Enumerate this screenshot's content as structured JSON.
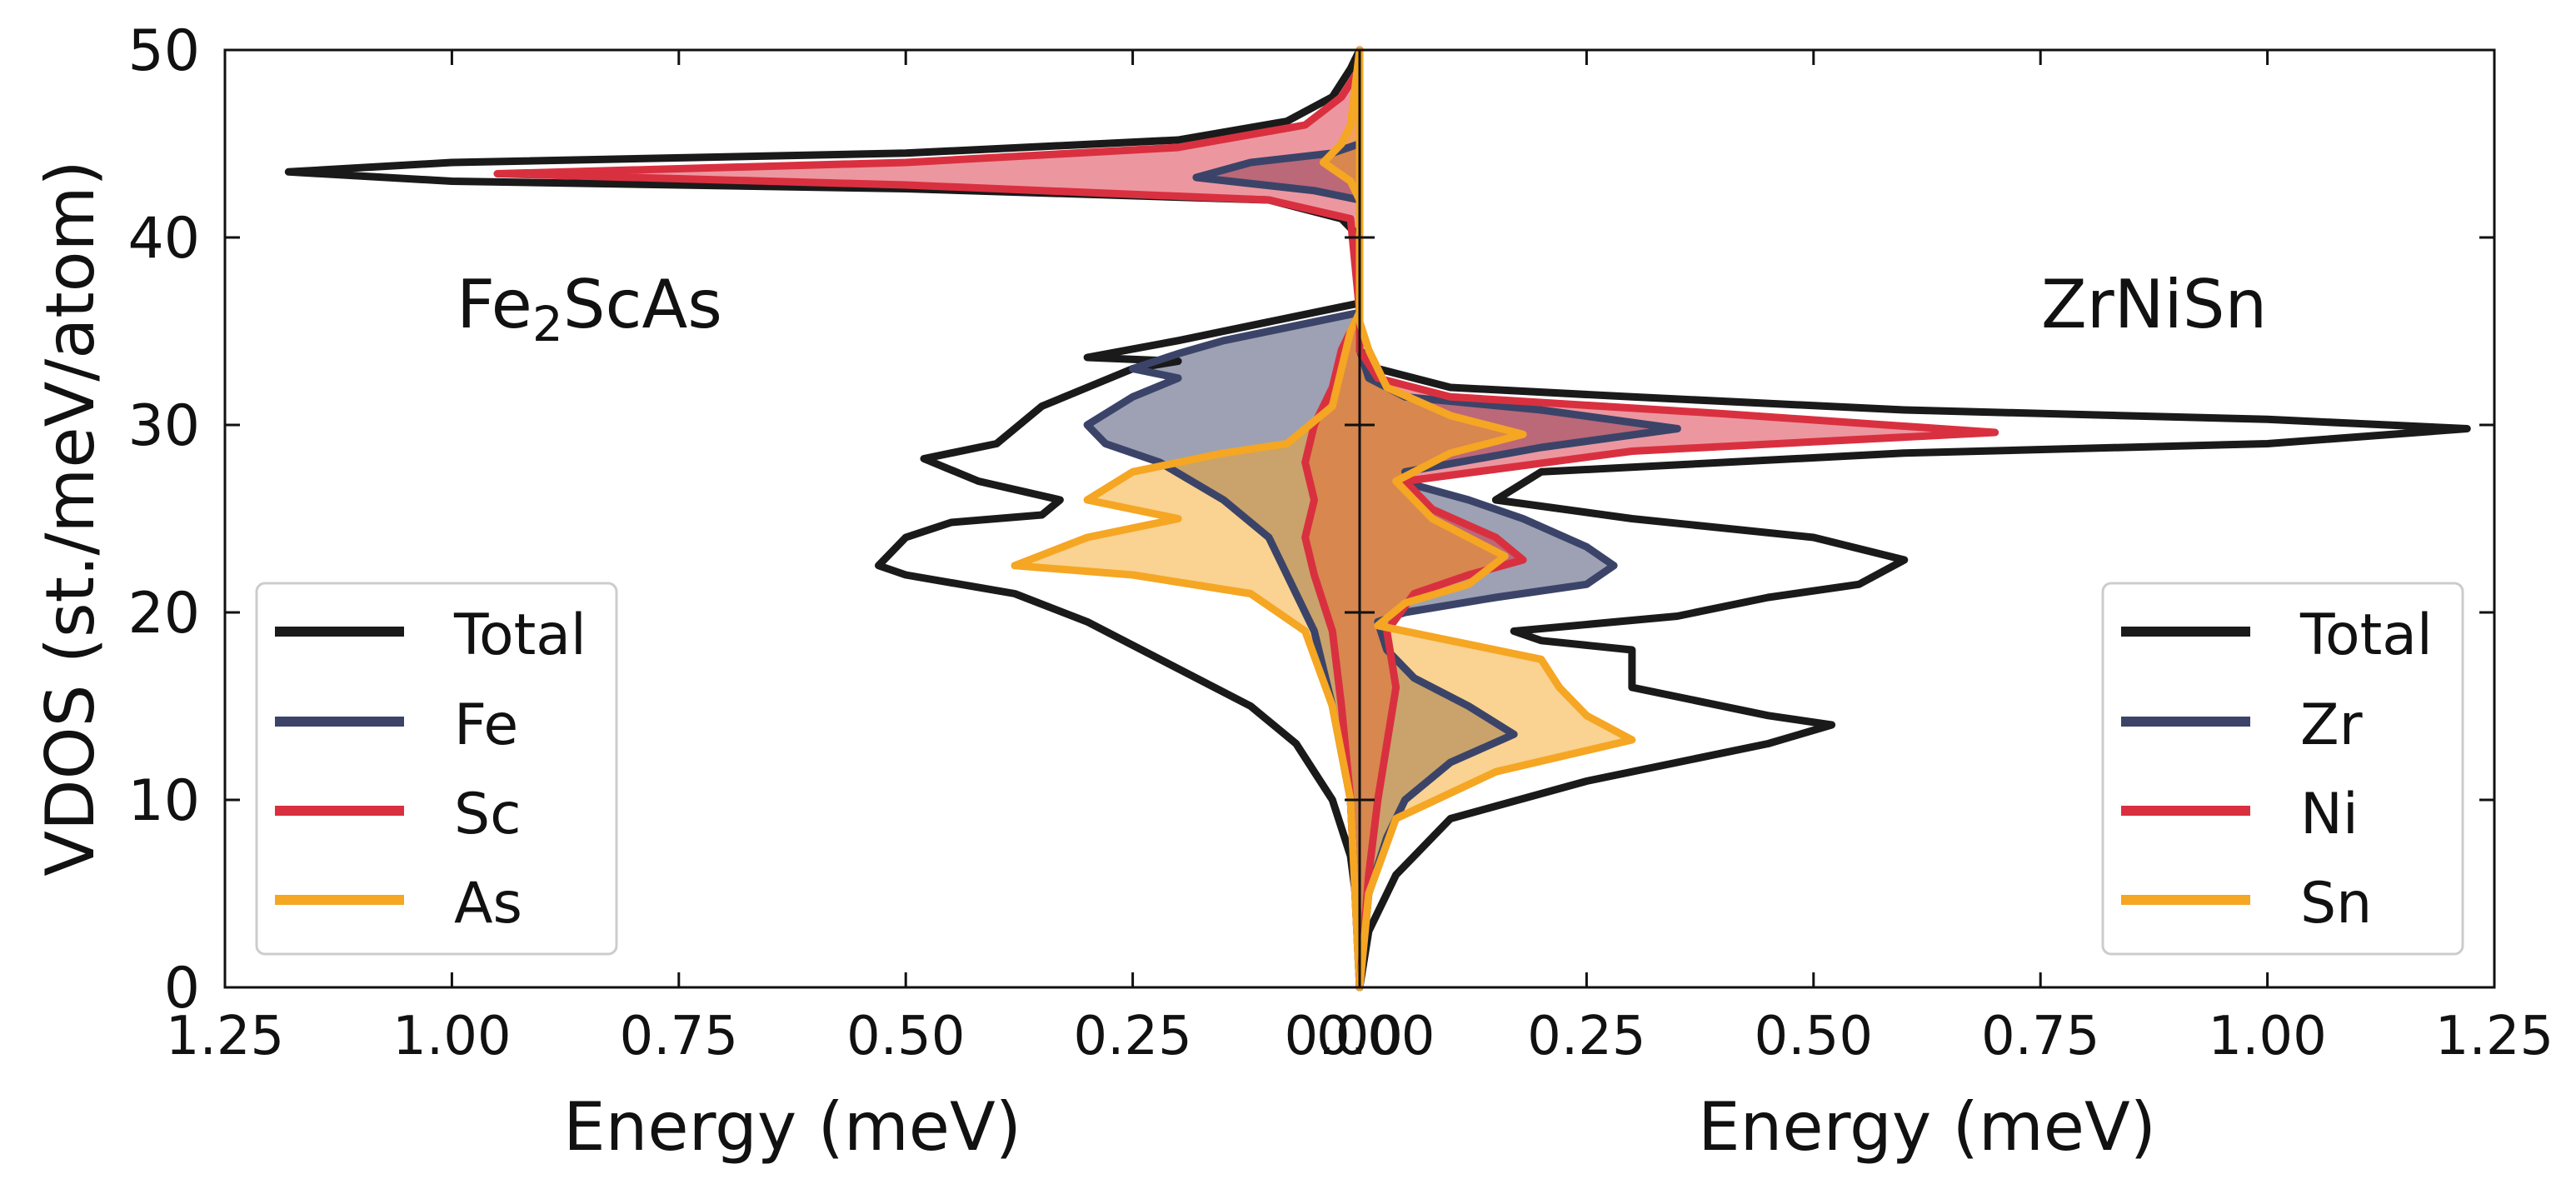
{
  "chart_data": {
    "type": "line",
    "ylabel": "VDOS (st./meV/atom)",
    "ylim": [
      0,
      50
    ],
    "yticks": [
      "0",
      "10",
      "20",
      "30",
      "40",
      "50"
    ],
    "panels": [
      {
        "title": "Fe₂ScAs",
        "compound": "Fe2ScAs",
        "orientation": "mirrored",
        "xlabel": "Energy (meV)",
        "xlim": [
          1.25,
          0.0
        ],
        "xticks": [
          "1.25",
          "1.00",
          "0.75",
          "0.50",
          "0.25",
          "0.00"
        ],
        "legend_position": "lower-left",
        "legend": [
          "Total",
          "Fe",
          "Sc",
          "As"
        ],
        "series": [
          {
            "name": "Total",
            "color": "#1a1a1a",
            "fill": false,
            "points": [
              [
                0,
                0
              ],
              [
                0.002,
                4
              ],
              [
                0.01,
                7
              ],
              [
                0.03,
                10
              ],
              [
                0.07,
                13
              ],
              [
                0.12,
                15
              ],
              [
                0.2,
                17
              ],
              [
                0.3,
                19.5
              ],
              [
                0.38,
                21
              ],
              [
                0.5,
                22
              ],
              [
                0.53,
                22.5
              ],
              [
                0.5,
                24
              ],
              [
                0.45,
                24.8
              ],
              [
                0.35,
                25.2
              ],
              [
                0.33,
                26
              ],
              [
                0.42,
                27
              ],
              [
                0.48,
                28.2
              ],
              [
                0.4,
                29
              ],
              [
                0.35,
                31
              ],
              [
                0.3,
                32
              ],
              [
                0.25,
                33
              ],
              [
                0.2,
                33.4
              ],
              [
                0.3,
                33.6
              ],
              [
                0.2,
                34.5
              ],
              [
                0.15,
                35
              ],
              [
                0.05,
                36
              ],
              [
                0.0,
                36.5
              ],
              [
                0.0,
                40
              ],
              [
                0.02,
                41
              ],
              [
                0.1,
                42
              ],
              [
                0.5,
                42.6
              ],
              [
                1.0,
                43
              ],
              [
                1.18,
                43.5
              ],
              [
                1.0,
                44
              ],
              [
                0.5,
                44.5
              ],
              [
                0.2,
                45.2
              ],
              [
                0.08,
                46.2
              ],
              [
                0.03,
                47.5
              ],
              [
                0.01,
                49
              ],
              [
                0,
                50
              ]
            ]
          },
          {
            "name": "Fe",
            "color": "#3b4468",
            "fill": true,
            "points": [
              [
                0,
                0
              ],
              [
                0.01,
                10
              ],
              [
                0.03,
                15
              ],
              [
                0.05,
                19
              ],
              [
                0.08,
                22
              ],
              [
                0.1,
                24
              ],
              [
                0.15,
                26
              ],
              [
                0.22,
                28
              ],
              [
                0.28,
                29
              ],
              [
                0.3,
                30
              ],
              [
                0.25,
                31.5
              ],
              [
                0.2,
                32.5
              ],
              [
                0.25,
                33
              ],
              [
                0.2,
                33.8
              ],
              [
                0.15,
                34.5
              ],
              [
                0.05,
                35.5
              ],
              [
                0,
                36
              ],
              [
                0,
                42
              ],
              [
                0.05,
                42.5
              ],
              [
                0.18,
                43.2
              ],
              [
                0.12,
                44
              ],
              [
                0.03,
                44.5
              ],
              [
                0,
                45
              ],
              [
                0,
                50
              ]
            ]
          },
          {
            "name": "Sc",
            "color": "#d93040",
            "fill": true,
            "points": [
              [
                0,
                0
              ],
              [
                0.01,
                10
              ],
              [
                0.02,
                15
              ],
              [
                0.03,
                19
              ],
              [
                0.05,
                22
              ],
              [
                0.06,
                24
              ],
              [
                0.05,
                26
              ],
              [
                0.06,
                28
              ],
              [
                0.05,
                30
              ],
              [
                0.03,
                32
              ],
              [
                0.02,
                34
              ],
              [
                0,
                36
              ],
              [
                0.01,
                41
              ],
              [
                0.1,
                42
              ],
              [
                0.5,
                42.8
              ],
              [
                0.95,
                43.4
              ],
              [
                0.5,
                44
              ],
              [
                0.2,
                44.8
              ],
              [
                0.06,
                46
              ],
              [
                0.02,
                47.5
              ],
              [
                0,
                49
              ],
              [
                0,
                50
              ]
            ]
          },
          {
            "name": "As",
            "color": "#f5a623",
            "fill": true,
            "points": [
              [
                0,
                0
              ],
              [
                0.01,
                10
              ],
              [
                0.03,
                15
              ],
              [
                0.06,
                19
              ],
              [
                0.12,
                21
              ],
              [
                0.25,
                22
              ],
              [
                0.38,
                22.5
              ],
              [
                0.3,
                24
              ],
              [
                0.2,
                25
              ],
              [
                0.3,
                26
              ],
              [
                0.25,
                27.5
              ],
              [
                0.15,
                28.5
              ],
              [
                0.08,
                29
              ],
              [
                0.03,
                31
              ],
              [
                0.02,
                33
              ],
              [
                0.01,
                35
              ],
              [
                0,
                36
              ],
              [
                0,
                42
              ],
              [
                0.01,
                43
              ],
              [
                0.04,
                44
              ],
              [
                0.02,
                45
              ],
              [
                0.01,
                46
              ],
              [
                0,
                50
              ]
            ]
          }
        ]
      },
      {
        "title": "ZrNiSn",
        "compound": "ZrNiSn",
        "orientation": "normal",
        "xlabel": "Energy (meV)",
        "xlim": [
          0.0,
          1.25
        ],
        "xticks": [
          "0.00",
          "0.25",
          "0.50",
          "0.75",
          "1.00",
          "1.25"
        ],
        "legend_position": "lower-right",
        "legend": [
          "Total",
          "Zr",
          "Ni",
          "Sn"
        ],
        "series": [
          {
            "name": "Total",
            "color": "#1a1a1a",
            "fill": false,
            "points": [
              [
                0,
                0
              ],
              [
                0.01,
                3
              ],
              [
                0.04,
                6
              ],
              [
                0.1,
                9
              ],
              [
                0.25,
                11
              ],
              [
                0.45,
                13
              ],
              [
                0.52,
                14
              ],
              [
                0.45,
                14.5
              ],
              [
                0.3,
                16
              ],
              [
                0.3,
                18
              ],
              [
                0.2,
                18.5
              ],
              [
                0.17,
                19
              ],
              [
                0.35,
                19.8
              ],
              [
                0.45,
                20.8
              ],
              [
                0.55,
                21.5
              ],
              [
                0.6,
                22.8
              ],
              [
                0.5,
                24
              ],
              [
                0.3,
                25
              ],
              [
                0.15,
                26
              ],
              [
                0.2,
                27.5
              ],
              [
                0.6,
                28.5
              ],
              [
                1.0,
                29
              ],
              [
                1.22,
                29.8
              ],
              [
                1.0,
                30.3
              ],
              [
                0.6,
                30.8
              ],
              [
                0.3,
                31.5
              ],
              [
                0.1,
                32
              ],
              [
                0.02,
                33
              ],
              [
                0,
                34
              ],
              [
                0,
                50
              ]
            ]
          },
          {
            "name": "Zr",
            "color": "#3b4468",
            "fill": true,
            "points": [
              [
                0,
                0
              ],
              [
                0.01,
                5
              ],
              [
                0.03,
                8
              ],
              [
                0.05,
                10
              ],
              [
                0.1,
                12
              ],
              [
                0.17,
                13.5
              ],
              [
                0.12,
                15
              ],
              [
                0.06,
                16.5
              ],
              [
                0.03,
                18
              ],
              [
                0.02,
                19.5
              ],
              [
                0.05,
                20
              ],
              [
                0.15,
                20.8
              ],
              [
                0.25,
                21.5
              ],
              [
                0.28,
                22.5
              ],
              [
                0.25,
                23.5
              ],
              [
                0.18,
                25
              ],
              [
                0.12,
                26
              ],
              [
                0.06,
                26.8
              ],
              [
                0.05,
                27.5
              ],
              [
                0.2,
                28.8
              ],
              [
                0.35,
                29.8
              ],
              [
                0.2,
                30.8
              ],
              [
                0.05,
                31.5
              ],
              [
                0.01,
                32.5
              ],
              [
                0,
                34
              ],
              [
                0,
                50
              ]
            ]
          },
          {
            "name": "Ni",
            "color": "#d93040",
            "fill": true,
            "points": [
              [
                0,
                0
              ],
              [
                0.01,
                6
              ],
              [
                0.02,
                10
              ],
              [
                0.03,
                13
              ],
              [
                0.04,
                16
              ],
              [
                0.03,
                19
              ],
              [
                0.06,
                21
              ],
              [
                0.12,
                22
              ],
              [
                0.18,
                22.8
              ],
              [
                0.15,
                24
              ],
              [
                0.08,
                25.5
              ],
              [
                0.05,
                27
              ],
              [
                0.3,
                28.6
              ],
              [
                0.7,
                29.6
              ],
              [
                0.4,
                30.6
              ],
              [
                0.1,
                31.5
              ],
              [
                0.02,
                32.5
              ],
              [
                0,
                34
              ],
              [
                0,
                50
              ]
            ]
          },
          {
            "name": "Sn",
            "color": "#f5a623",
            "fill": true,
            "points": [
              [
                0,
                0
              ],
              [
                0.01,
                5
              ],
              [
                0.04,
                9
              ],
              [
                0.15,
                11.5
              ],
              [
                0.3,
                13.2
              ],
              [
                0.25,
                14.5
              ],
              [
                0.22,
                16
              ],
              [
                0.2,
                17.5
              ],
              [
                0.1,
                18.5
              ],
              [
                0.02,
                19.3
              ],
              [
                0.05,
                20.5
              ],
              [
                0.12,
                21.5
              ],
              [
                0.16,
                23
              ],
              [
                0.08,
                25
              ],
              [
                0.04,
                27
              ],
              [
                0.1,
                28.5
              ],
              [
                0.18,
                29.5
              ],
              [
                0.1,
                30.5
              ],
              [
                0.03,
                32
              ],
              [
                0.01,
                34
              ],
              [
                0,
                35.5
              ],
              [
                0,
                50
              ]
            ]
          }
        ]
      }
    ]
  }
}
